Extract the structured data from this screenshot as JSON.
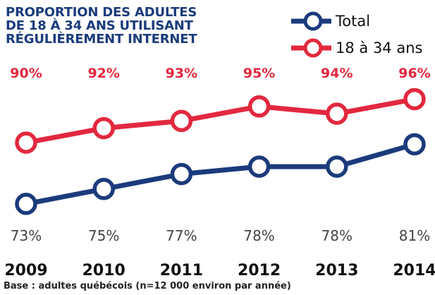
{
  "chart_data": {
    "type": "line",
    "title": "PROPORTION DES ADULTES\nDE 18 À 34 ANS UTILISANT\nRÉGULIÈREMENT INTERNET",
    "categories": [
      "2009",
      "2010",
      "2011",
      "2012",
      "2013",
      "2014"
    ],
    "series": [
      {
        "name": "Total",
        "color": "#1b3b7c",
        "values": [
          73,
          75,
          77,
          78,
          78,
          81
        ],
        "value_labels": [
          "73%",
          "75%",
          "77%",
          "78%",
          "78%",
          "81%"
        ]
      },
      {
        "name": "18 à 34 ans",
        "color": "#e2283e",
        "axis": "y2",
        "values": [
          90,
          92,
          93,
          95,
          94,
          96
        ],
        "value_labels": [
          "90%",
          "92%",
          "93%",
          "95%",
          "94%",
          "96%"
        ]
      }
    ],
    "ylim": [
      71,
      89
    ],
    "y2lim": [
      79.5,
      98
    ],
    "note": "Base : adultes québécois (n=12 000 environ par année)"
  }
}
